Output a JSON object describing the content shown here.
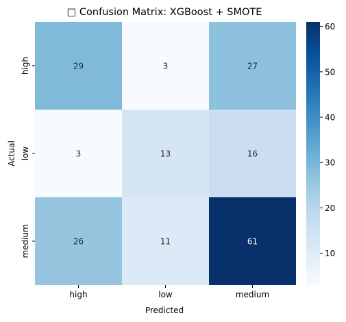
{
  "chart_data": {
    "type": "heatmap",
    "title": "□ Confusion Matrix: XGBoost + SMOTE",
    "xlabel": "Predicted",
    "ylabel": "Actual",
    "x_categories": [
      "high",
      "low",
      "medium"
    ],
    "y_categories": [
      "high",
      "low",
      "medium"
    ],
    "values": [
      [
        29,
        3,
        27
      ],
      [
        3,
        13,
        16
      ],
      [
        26,
        11,
        61
      ]
    ],
    "colormap": "Blues",
    "color_range": [
      3,
      61
    ],
    "colorbar_ticks": [
      "10",
      "20",
      "30",
      "40",
      "50",
      "60"
    ],
    "colorbar_tick_values": [
      10,
      20,
      30,
      40,
      50,
      60
    ]
  }
}
